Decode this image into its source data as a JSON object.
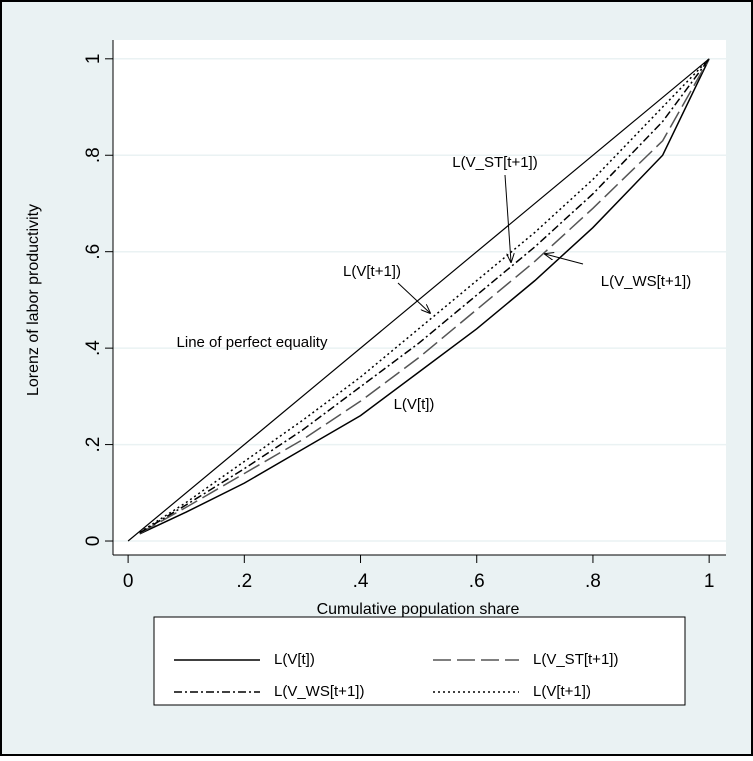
{
  "chart_data": {
    "type": "line",
    "x_label": "Cumulative population share",
    "y_label": "Lorenz of labor productivity",
    "x": [
      0.02,
      0.1,
      0.2,
      0.3,
      0.4,
      0.5,
      0.6,
      0.7,
      0.8,
      0.92,
      1
    ],
    "series": [
      {
        "name": "L(V[t])",
        "color": "#000000",
        "style": "solid",
        "values": [
          0.015,
          0.06,
          0.12,
          0.19,
          0.26,
          0.35,
          0.44,
          0.54,
          0.65,
          0.8,
          1
        ]
      },
      {
        "name": "L(V_ST[t+1])",
        "color": "#555555",
        "style": "longdash",
        "values": [
          0.016,
          0.07,
          0.14,
          0.21,
          0.29,
          0.38,
          0.48,
          0.58,
          0.69,
          0.83,
          1
        ]
      },
      {
        "name": "L(V_WS[t+1])",
        "color": "#000000",
        "style": "dashdot",
        "values": [
          0.017,
          0.075,
          0.15,
          0.23,
          0.32,
          0.41,
          0.51,
          0.61,
          0.72,
          0.87,
          1
        ]
      },
      {
        "name": "L(V[t+1])",
        "color": "#000000",
        "style": "dot",
        "values": [
          0.018,
          0.08,
          0.165,
          0.25,
          0.34,
          0.44,
          0.54,
          0.64,
          0.75,
          0.9,
          1
        ]
      }
    ],
    "reference_line": {
      "x": [
        0,
        1
      ],
      "values": [
        0,
        1
      ],
      "color": "#000000"
    },
    "annotations": [
      "L(V_ST[t+1])",
      "L(V[t+1])",
      "Line of perfect equality",
      "L(V[t])",
      "L(V_WS[t+1])"
    ],
    "xlim": [
      -0.026,
      1.029
    ],
    "ylim": [
      -0.029,
      1.039
    ],
    "xticks": [
      0,
      {
        "value": 0.2,
        "label": ".2"
      },
      {
        "value": 0.4,
        "label": ".4"
      },
      {
        "value": 0.6,
        "label": ".6"
      },
      {
        "value": 0.8,
        "label": ".8"
      },
      1
    ],
    "yticks": [
      0,
      {
        "value": 0.2,
        "label": ".2"
      },
      {
        "value": 0.4,
        "label": ".4"
      },
      {
        "value": 0.6,
        "label": ".6"
      },
      {
        "value": 0.8,
        "label": ".8"
      },
      1
    ],
    "grid": true
  }
}
